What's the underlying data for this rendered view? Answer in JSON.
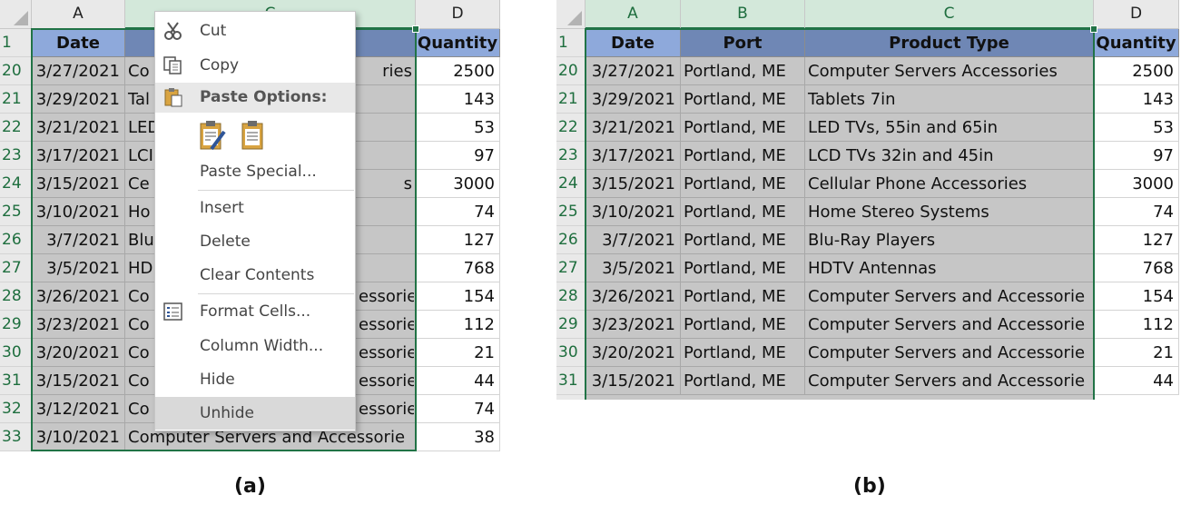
{
  "panel_a": {
    "caption": "(a)",
    "column_headers": [
      "A",
      "C",
      "D"
    ],
    "table_headers": {
      "date": "Date",
      "quantity": "Quantity"
    },
    "rows": [
      {
        "row": "20",
        "date": "3/27/2021",
        "left_text": "Co",
        "right_text": "ries",
        "quantity": "2500"
      },
      {
        "row": "21",
        "date": "3/29/2021",
        "left_text": "Tal",
        "right_text": "",
        "quantity": "143"
      },
      {
        "row": "22",
        "date": "3/21/2021",
        "left_text": "LED",
        "right_text": "",
        "quantity": "53"
      },
      {
        "row": "23",
        "date": "3/17/2021",
        "left_text": "LCI",
        "right_text": "",
        "quantity": "97"
      },
      {
        "row": "24",
        "date": "3/15/2021",
        "left_text": "Ce",
        "right_text": "s",
        "quantity": "3000"
      },
      {
        "row": "25",
        "date": "3/10/2021",
        "left_text": "Ho",
        "right_text": "",
        "quantity": "74"
      },
      {
        "row": "26",
        "date": "3/7/2021",
        "left_text": "Blu",
        "right_text": "",
        "quantity": "127"
      },
      {
        "row": "27",
        "date": "3/5/2021",
        "left_text": "HD",
        "right_text": "",
        "quantity": "768"
      },
      {
        "row": "28",
        "date": "3/26/2021",
        "left_text": "Co",
        "right_text": "essorie",
        "quantity": "154"
      },
      {
        "row": "29",
        "date": "3/23/2021",
        "left_text": "Co",
        "right_text": "essorie",
        "quantity": "112"
      },
      {
        "row": "30",
        "date": "3/20/2021",
        "left_text": "Co",
        "right_text": "essorie",
        "quantity": "21"
      },
      {
        "row": "31",
        "date": "3/15/2021",
        "left_text": "Co",
        "right_text": "essorie",
        "quantity": "44"
      },
      {
        "row": "32",
        "date": "3/12/2021",
        "left_text": "Co",
        "right_text": "essorie",
        "quantity": "74"
      },
      {
        "row": "33",
        "date": "3/10/2021",
        "left_text": "Computer Servers and Accessorie",
        "right_text": "",
        "quantity": "38"
      }
    ],
    "context_menu": {
      "cut": "Cut",
      "copy": "Copy",
      "paste_options": "Paste Options:",
      "paste_special": "Paste Special...",
      "insert": "Insert",
      "delete": "Delete",
      "clear_contents": "Clear Contents",
      "format_cells": "Format Cells...",
      "column_width": "Column Width...",
      "hide": "Hide",
      "unhide": "Unhide"
    }
  },
  "panel_b": {
    "caption": "(b)",
    "column_headers": [
      "A",
      "B",
      "C",
      "D"
    ],
    "table_headers": {
      "date": "Date",
      "port": "Port",
      "product_type": "Product Type",
      "quantity": "Quantity"
    },
    "rows": [
      {
        "row": "20",
        "date": "3/27/2021",
        "port": "Portland, ME",
        "product": "Computer Servers Accessories",
        "quantity": "2500"
      },
      {
        "row": "21",
        "date": "3/29/2021",
        "port": "Portland, ME",
        "product": "Tablets 7in",
        "quantity": "143"
      },
      {
        "row": "22",
        "date": "3/21/2021",
        "port": "Portland, ME",
        "product": "LED TVs, 55in and 65in",
        "quantity": "53"
      },
      {
        "row": "23",
        "date": "3/17/2021",
        "port": "Portland, ME",
        "product": "LCD TVs 32in and 45in",
        "quantity": "97"
      },
      {
        "row": "24",
        "date": "3/15/2021",
        "port": "Portland, ME",
        "product": "Cellular Phone Accessories",
        "quantity": "3000"
      },
      {
        "row": "25",
        "date": "3/10/2021",
        "port": "Portland, ME",
        "product": "Home Stereo Systems",
        "quantity": "74"
      },
      {
        "row": "26",
        "date": "3/7/2021",
        "port": "Portland, ME",
        "product": "Blu-Ray Players",
        "quantity": "127"
      },
      {
        "row": "27",
        "date": "3/5/2021",
        "port": "Portland, ME",
        "product": "HDTV Antennas",
        "quantity": "768"
      },
      {
        "row": "28",
        "date": "3/26/2021",
        "port": "Portland, ME",
        "product": "Computer Servers and Accessorie",
        "quantity": "154"
      },
      {
        "row": "29",
        "date": "3/23/2021",
        "port": "Portland, ME",
        "product": "Computer Servers and Accessorie",
        "quantity": "112"
      },
      {
        "row": "30",
        "date": "3/20/2021",
        "port": "Portland, ME",
        "product": "Computer Servers and Accessorie",
        "quantity": "21"
      },
      {
        "row": "31",
        "date": "3/15/2021",
        "port": "Portland, ME",
        "product": "Computer Servers and Accessorie",
        "quantity": "44"
      }
    ]
  },
  "colors": {
    "selection_green": "#217346",
    "header_blue_light": "#8ea9db",
    "header_blue_dark": "#6f87b5",
    "selected_fill": "#c6c6c6"
  }
}
